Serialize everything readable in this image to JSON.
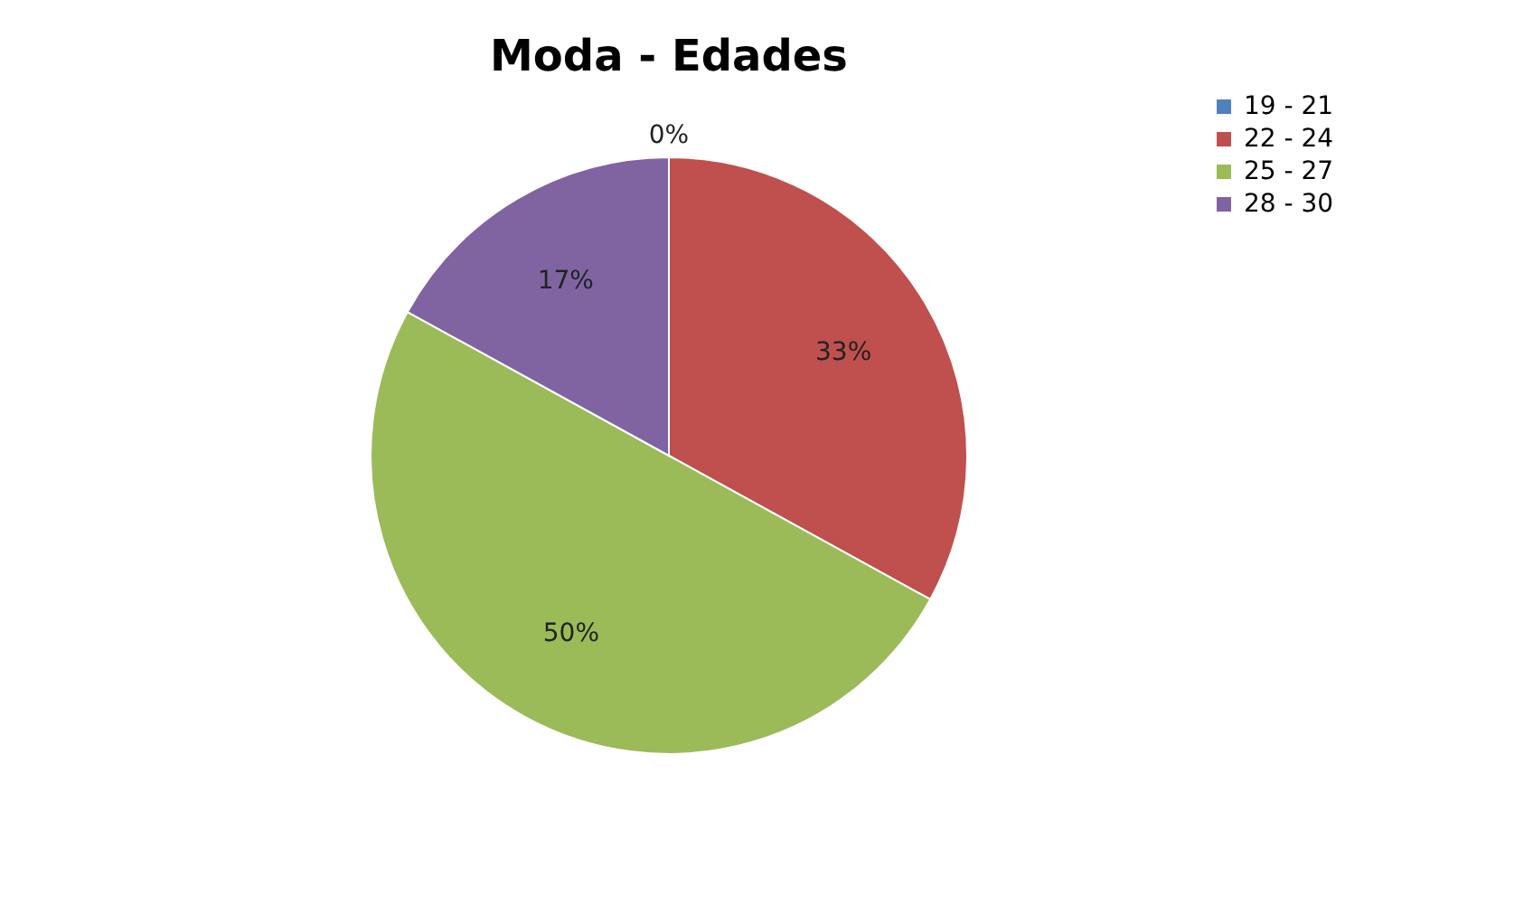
{
  "chart_data": {
    "type": "pie",
    "title": "Moda - Edades",
    "categories": [
      "19 - 21",
      "22 - 24",
      "25 - 27",
      "28 - 30"
    ],
    "values": [
      0,
      33,
      50,
      17
    ],
    "colors": [
      "#4f81bd",
      "#c0504d",
      "#9bbb59",
      "#8064a2"
    ],
    "value_labels": [
      "0%",
      "33%",
      "50%",
      "17%"
    ],
    "legend": "right"
  }
}
